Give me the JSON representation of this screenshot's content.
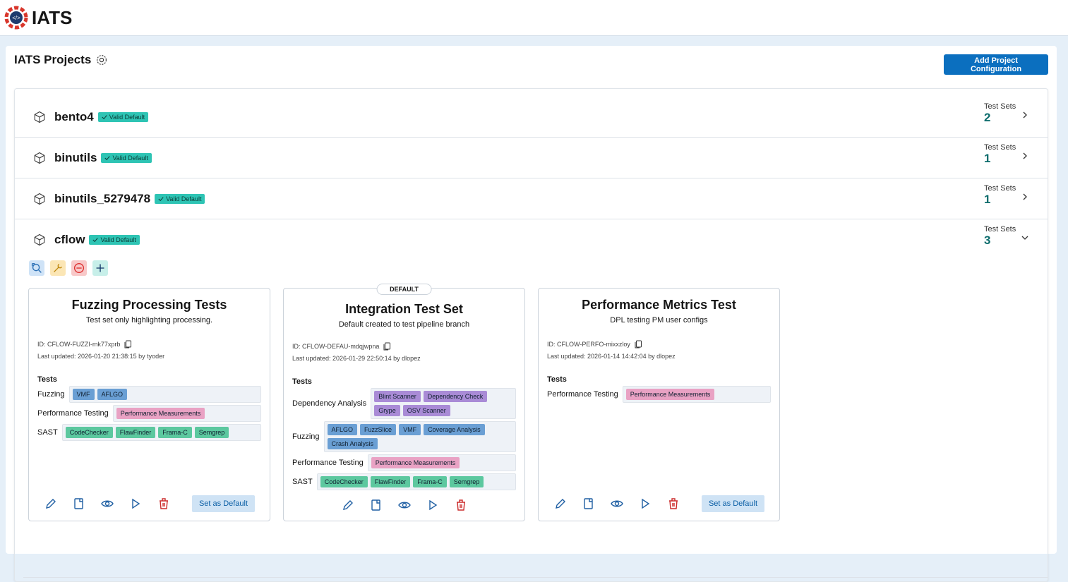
{
  "header": {
    "app_name": "IATS"
  },
  "page": {
    "title": "IATS Projects",
    "add_button": "Add Project Configuration"
  },
  "projects": [
    {
      "name": "bento4",
      "badge": "Valid Default",
      "test_sets_label": "Test Sets",
      "test_sets_count": 2,
      "expanded": false
    },
    {
      "name": "binutils",
      "badge": "Valid Default",
      "test_sets_label": "Test Sets",
      "test_sets_count": 1,
      "expanded": false
    },
    {
      "name": "binutils_5279478",
      "badge": "Valid Default",
      "test_sets_label": "Test Sets",
      "test_sets_count": 1,
      "expanded": false
    },
    {
      "name": "cflow",
      "badge": "Valid Default",
      "test_sets_label": "Test Sets",
      "test_sets_count": 3,
      "expanded": true
    }
  ],
  "test_sets": [
    {
      "name": "Fuzzing Processing Tests",
      "description": "Test set only highlighting processing.",
      "id": "ID: CFLOW-FUZZI-mk77xprb",
      "updated": "Last updated: 2026-01-20 21:38:15 by tyoder",
      "tests_heading": "Tests",
      "tests": [
        {
          "category": "Fuzzing",
          "color": "#6a9fd4",
          "tools": [
            "VMF",
            "AFLGO"
          ]
        },
        {
          "category": "Performance Testing",
          "color": "#e9a2c4",
          "tools": [
            "Performance Measurements"
          ]
        },
        {
          "category": "SAST",
          "color": "#5cc89f",
          "tools": [
            "CodeChecker",
            "FlawFinder",
            "Frama-C",
            "Semgrep"
          ]
        }
      ],
      "set_default_button": "Set as Default"
    },
    {
      "default_label": "DEFAULT",
      "name": "Integration Test Set",
      "description": "Default created to test pipeline branch",
      "id": "ID: CFLOW-DEFAU-mdqjwpna",
      "updated": "Last updated: 2026-01-29 22:50:14 by dlopez",
      "tests_heading": "Tests",
      "tests": [
        {
          "category": "Dependency Analysis",
          "color": "#a98bd6",
          "tools": [
            "Blint Scanner",
            "Dependency Check",
            "Grype",
            "OSV Scanner"
          ]
        },
        {
          "category": "Fuzzing",
          "color": "#6a9fd4",
          "tools": [
            "AFLGO",
            "FuzzSlice",
            "VMF",
            "Coverage Analysis",
            "Crash Analysis"
          ]
        },
        {
          "category": "Performance Testing",
          "color": "#e9a2c4",
          "tools": [
            "Performance Measurements"
          ]
        },
        {
          "category": "SAST",
          "color": "#5cc89f",
          "tools": [
            "CodeChecker",
            "FlawFinder",
            "Frama-C",
            "Semgrep"
          ]
        }
      ]
    },
    {
      "name": "Performance Metrics Test",
      "description": "DPL testing PM user configs",
      "id": "ID: CFLOW-PERFO-mixxzloy",
      "updated": "Last updated: 2026-01-14 14:42:04 by dlopez",
      "tests_heading": "Tests",
      "tests": [
        {
          "category": "Performance Testing",
          "color": "#e9a2c4",
          "tools": [
            "Performance Measurements"
          ]
        }
      ],
      "set_default_button": "Set as Default"
    }
  ]
}
